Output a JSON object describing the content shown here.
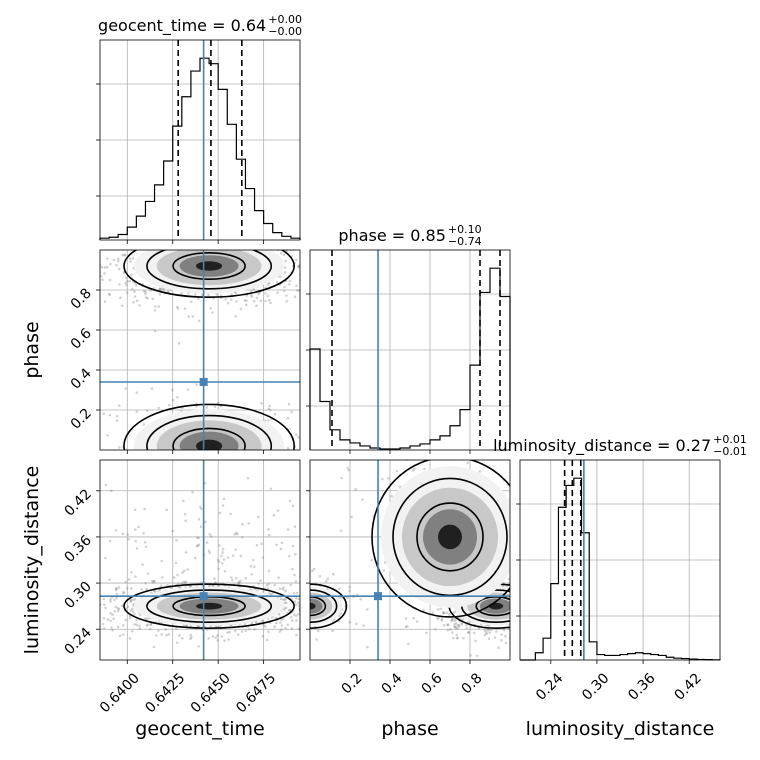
{
  "figure": {
    "type": "corner-plot"
  },
  "colors": {
    "truth": "#4682b4",
    "hist": "#000000",
    "grid": "#b0b0b0",
    "points": "#7f7f7f",
    "quantile": "#000000"
  },
  "chart_data": [
    {
      "type": "bar",
      "panel": "hist-geocent_time",
      "title_main": "geocent_time = 0.64",
      "title_sup": "+0.00",
      "title_sub": "−0.00",
      "xlim": [
        0.6385,
        0.6495
      ],
      "edges": [
        0.6385,
        0.639,
        0.6395,
        0.64,
        0.6405,
        0.641,
        0.6415,
        0.642,
        0.6425,
        0.643,
        0.6435,
        0.644,
        0.6445,
        0.645,
        0.6455,
        0.646,
        0.6465,
        0.647,
        0.6475,
        0.648,
        0.6485,
        0.649,
        0.6495
      ],
      "values": [
        0.01,
        0.015,
        0.03,
        0.07,
        0.13,
        0.21,
        0.3,
        0.43,
        0.62,
        0.78,
        0.92,
        0.99,
        0.96,
        0.82,
        0.63,
        0.44,
        0.28,
        0.16,
        0.09,
        0.04,
        0.02,
        0.01
      ],
      "quantiles": [
        0.6428,
        0.6446,
        0.6463
      ],
      "truth": 0.6442,
      "grid": true
    },
    {
      "type": "bar",
      "panel": "hist-phase",
      "title_main": "phase = 0.85",
      "title_sup": "+0.10",
      "title_sub": "−0.74",
      "xlim": [
        0.0,
        1.0
      ],
      "edges": [
        0,
        0.05,
        0.1,
        0.15,
        0.2,
        0.25,
        0.3,
        0.35,
        0.4,
        0.45,
        0.5,
        0.55,
        0.6,
        0.65,
        0.7,
        0.75,
        0.8,
        0.85,
        0.9,
        0.95,
        1.0
      ],
      "values": [
        0.5,
        0.24,
        0.1,
        0.05,
        0.035,
        0.02,
        0.01,
        0.005,
        0.005,
        0.01,
        0.02,
        0.03,
        0.05,
        0.07,
        0.12,
        0.2,
        0.42,
        0.78,
        0.9,
        0.76
      ],
      "quantiles": [
        0.11,
        0.85,
        0.95
      ],
      "truth": 0.34,
      "grid": true
    },
    {
      "type": "bar",
      "panel": "hist-luminosity_distance",
      "title_main": "luminosity_distance = 0.27",
      "title_sup": "+0.01",
      "title_sub": "−0.01",
      "xlim": [
        0.2,
        0.46
      ],
      "edges": [
        0.2,
        0.21,
        0.22,
        0.23,
        0.24,
        0.25,
        0.26,
        0.27,
        0.28,
        0.29,
        0.3,
        0.31,
        0.32,
        0.33,
        0.34,
        0.35,
        0.36,
        0.37,
        0.38,
        0.39,
        0.4,
        0.41,
        0.42,
        0.43,
        0.44,
        0.45,
        0.46
      ],
      "values": [
        0,
        0,
        0.04,
        0.12,
        0.42,
        0.84,
        0.96,
        1.0,
        0.7,
        0.1,
        0.03,
        0.025,
        0.025,
        0.03,
        0.035,
        0.04,
        0.035,
        0.03,
        0.025,
        0.015,
        0.01,
        0.008,
        0.005,
        0.003,
        0.002,
        0.001
      ],
      "quantiles": [
        0.258,
        0.268,
        0.279
      ],
      "truth": 0.283,
      "grid": true
    },
    {
      "type": "scatter",
      "panel": "2d-phase-vs-geocent_time",
      "xlim": [
        0.6385,
        0.6495
      ],
      "ylim": [
        0.0,
        1.0
      ],
      "truth": [
        0.6442,
        0.34
      ],
      "modes": [
        [
          0.6445,
          0.92,
          0.0018,
          0.06,
          0.78
        ],
        [
          0.6445,
          0.02,
          0.0018,
          0.08,
          0.22
        ]
      ],
      "yticks": [
        0.2,
        0.4,
        0.6,
        0.8
      ],
      "ylabel": "phase",
      "grid": true
    },
    {
      "type": "scatter",
      "panel": "2d-luminosity_distance-vs-geocent_time",
      "xlim": [
        0.6385,
        0.6495
      ],
      "ylim": [
        0.2,
        0.46
      ],
      "truth": [
        0.6442,
        0.283
      ],
      "modes": [
        [
          0.6445,
          0.27,
          0.0018,
          0.011,
          0.92
        ],
        [
          0.6448,
          0.36,
          0.0018,
          0.02,
          0.08
        ]
      ],
      "xticks": [
        0.64,
        0.6425,
        0.645,
        0.6475
      ],
      "xticklabels": [
        "0.6400",
        "0.6425",
        "0.6450",
        "0.6475"
      ],
      "yticks": [
        0.24,
        0.3,
        0.36,
        0.42
      ],
      "yticklabels": [
        "0.24",
        "0.30",
        "0.36",
        "0.42"
      ],
      "xlabel": "geocent_time",
      "ylabel": "luminosity_distance",
      "grid": true
    },
    {
      "type": "scatter",
      "panel": "2d-luminosity_distance-vs-phase",
      "xlim": [
        0.0,
        1.0
      ],
      "ylim": [
        0.2,
        0.46
      ],
      "truth": [
        0.34,
        0.283
      ],
      "modes": [
        [
          0.93,
          0.27,
          0.09,
          0.011,
          0.65
        ],
        [
          0.0,
          0.27,
          0.07,
          0.011,
          0.2
        ],
        [
          0.7,
          0.36,
          0.15,
          0.04,
          0.15
        ]
      ],
      "xticks": [
        0.2,
        0.4,
        0.6,
        0.8
      ],
      "xticklabels": [
        "0.2",
        "0.4",
        "0.6",
        "0.8"
      ],
      "xlabel": "phase",
      "grid": true
    }
  ],
  "axis_titles": {
    "x1": "geocent_time",
    "x2": "phase",
    "x3": "luminosity_distance",
    "y2": "phase",
    "y3": "luminosity_distance"
  },
  "lumi_xticks": {
    "values": [
      0.24,
      0.3,
      0.36,
      0.42
    ],
    "labels": [
      "0.24",
      "0.30",
      "0.36",
      "0.42"
    ]
  }
}
